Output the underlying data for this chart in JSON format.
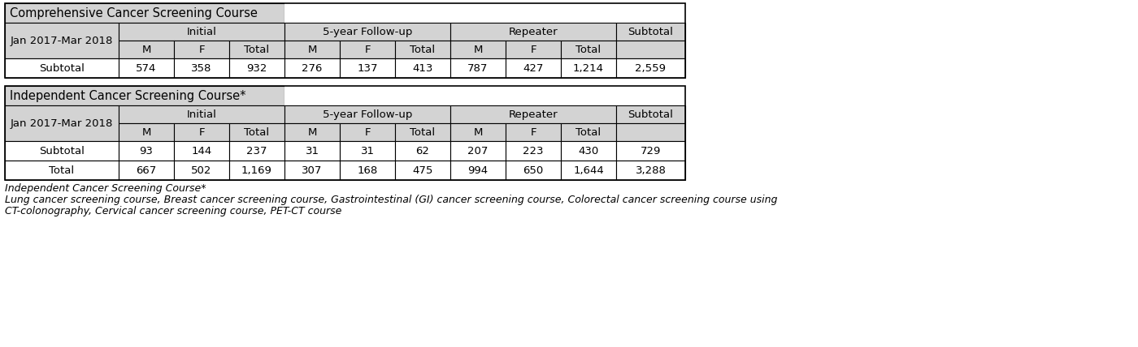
{
  "table1_title": "Comprehensive Cancer Screening Course",
  "table2_title": "Independent Cancer Screening Course*",
  "date_label": "Jan 2017-Mar 2018",
  "col_groups": [
    "Initial",
    "5-year Follow-up",
    "Repeater",
    "Subtotal"
  ],
  "sub_cols": [
    "M",
    "F",
    "Total"
  ],
  "table1_rows": [
    [
      "Subtotal",
      "574",
      "358",
      "932",
      "276",
      "137",
      "413",
      "787",
      "427",
      "1,214",
      "2,559"
    ]
  ],
  "table2_rows": [
    [
      "Subtotal",
      "93",
      "144",
      "237",
      "31",
      "31",
      "62",
      "207",
      "223",
      "430",
      "729"
    ],
    [
      "Total",
      "667",
      "502",
      "1,169",
      "307",
      "168",
      "475",
      "994",
      "650",
      "1,644",
      "3,288"
    ]
  ],
  "footnote_line1": "Independent Cancer Screening Course*",
  "footnote_line2": "Lung cancer screening course, Breast cancer screening course, Gastrointestinal (GI) cancer screening course, Colorectal cancer screening course using",
  "footnote_line3": "CT-colonography, Cervical cancer screening course, PET-CT course",
  "header_bg": "#d3d3d3",
  "white_bg": "#ffffff",
  "border_color": "#000000",
  "font_size": 9.5,
  "title_font_size": 10.5,
  "footnote_font_size": 9.0
}
